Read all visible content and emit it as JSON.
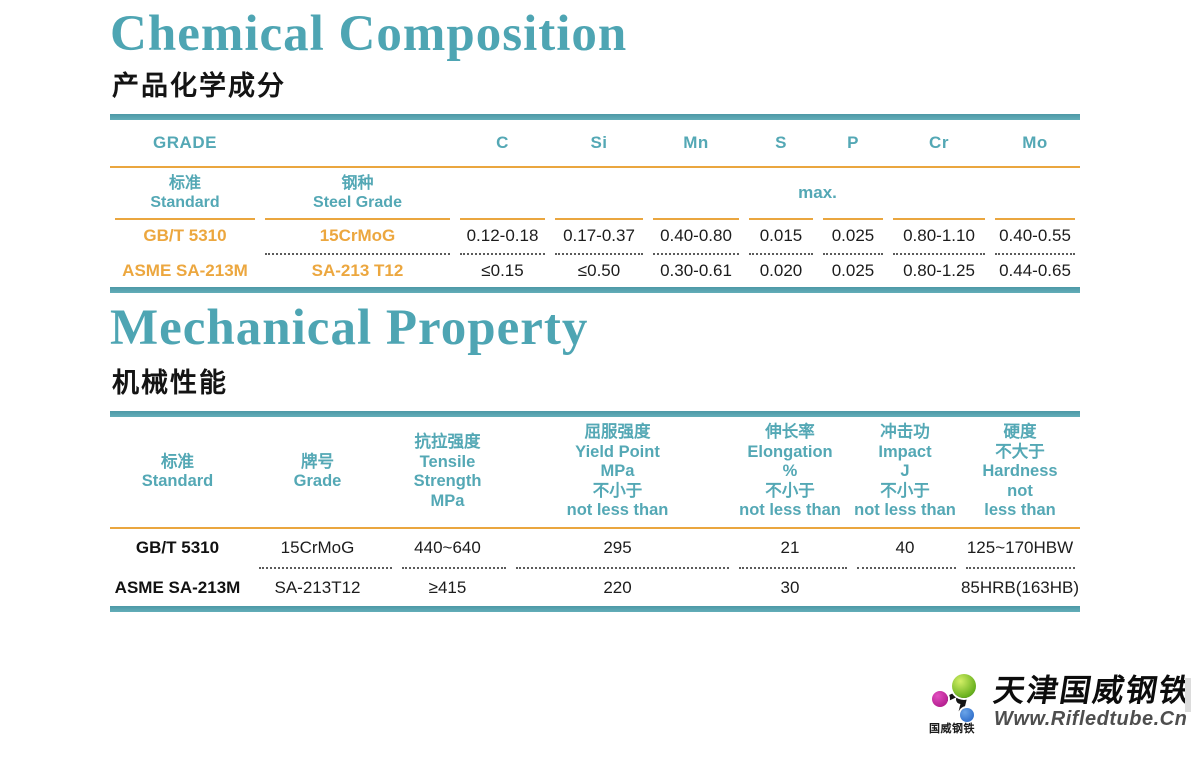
{
  "colors": {
    "teal_title": "#4ea5b3",
    "teal_header_text": "#54a8b5",
    "teal_bar": "#5fadb8",
    "orange_accent": "#eaa63f",
    "body_text": "#1c1c1c",
    "website_gray": "#4e4e4e"
  },
  "chemical": {
    "title": "Chemical Composition",
    "subtitle_zh": "产品化学成分",
    "table": {
      "grade_label": "GRADE",
      "elements": [
        "C",
        "Si",
        "Mn",
        "S",
        "P",
        "Cr",
        "Mo"
      ],
      "standard_zh": "标准",
      "standard_en": "Standard",
      "steel_grade_zh": "钢种",
      "steel_grade_en": "Steel Grade",
      "max_label": "max.",
      "rows": [
        {
          "standard": "GB/T 5310",
          "steel_grade": "15CrMoG",
          "values": [
            "0.12-0.18",
            "0.17-0.37",
            "0.40-0.80",
            "0.015",
            "0.025",
            "0.80-1.10",
            "0.40-0.55"
          ]
        },
        {
          "standard": "ASME SA-213M",
          "steel_grade": "SA-213 T12",
          "values": [
            "≤0.15",
            "≤0.50",
            "0.30-0.61",
            "0.020",
            "0.025",
            "0.80-1.25",
            "0.44-0.65"
          ]
        }
      ]
    }
  },
  "mechanical": {
    "title": "Mechanical Property",
    "subtitle_zh": "机械性能",
    "table": {
      "headers": [
        {
          "lines": [
            "标准",
            "Standard"
          ]
        },
        {
          "lines": [
            "牌号",
            "Grade"
          ]
        },
        {
          "lines": [
            "抗拉强度",
            "Tensile",
            "Strength",
            "MPa"
          ]
        },
        {
          "lines": [
            "屈服强度",
            "Yield Point",
            "MPa",
            "不小于",
            "not less than"
          ]
        },
        {
          "lines": [
            "伸长率",
            "Elongation",
            "%",
            "不小于",
            "not less than"
          ]
        },
        {
          "lines": [
            "冲击功",
            "Impact",
            "J",
            "不小于",
            "not less than"
          ]
        },
        {
          "lines": [
            "硬度",
            "不大于",
            "Hardness",
            "not",
            "less than"
          ]
        }
      ],
      "rows": [
        [
          "GB/T 5310",
          "15CrMoG",
          "440~640",
          "295",
          "21",
          "40",
          "125~170HBW"
        ],
        [
          "ASME SA-213M",
          "SA-213T12",
          "≥415",
          "220",
          "30",
          "",
          "85HRB(163HB)"
        ]
      ]
    }
  },
  "footer": {
    "company_name_zh": "天津国威钢铁",
    "logo_caption_zh": "国威钢铁",
    "website": "Www.Rifledtube.Cn"
  }
}
